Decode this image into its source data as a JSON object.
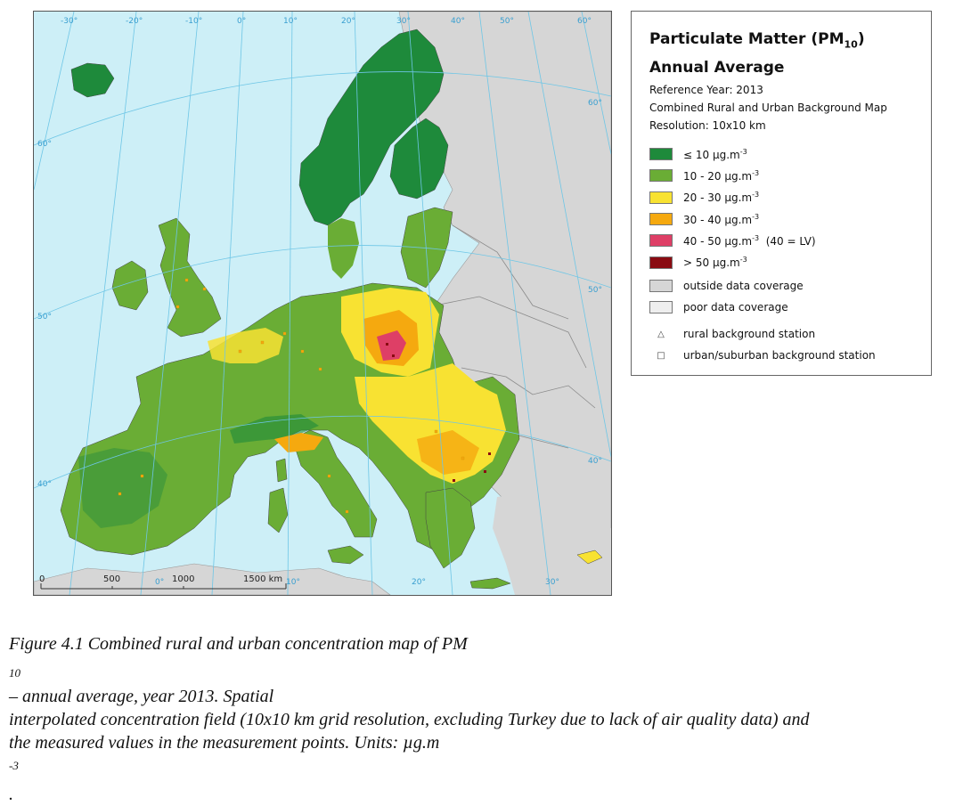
{
  "legend": {
    "title_line1": "Particulate Matter (PM",
    "title_sub": "10",
    "title_end": ")",
    "title_line2": "Annual Average",
    "reference_year": "Reference Year: 2013",
    "map_type": "Combined Rural and Urban Background Map",
    "resolution": "Resolution: 10x10 km",
    "classes": [
      {
        "label": "≤ 10 μg.m",
        "sup": "-3",
        "suffix": "",
        "color": "#1e8a3b"
      },
      {
        "label": "10 - 20 μg.m",
        "sup": "-3",
        "suffix": "",
        "color": "#6aad35"
      },
      {
        "label": "20 - 30 μg.m",
        "sup": "-3",
        "suffix": "",
        "color": "#f8e232"
      },
      {
        "label": "30 - 40 μg.m",
        "sup": "-3",
        "suffix": "",
        "color": "#f5a90f"
      },
      {
        "label": "40 - 50 μg.m",
        "sup": "-3",
        "suffix": "  (40 = LV)",
        "color": "#de3f66"
      },
      {
        "label": "> 50 μg.m",
        "sup": "-3",
        "suffix": "",
        "color": "#8a0b12"
      }
    ],
    "outside_coverage": {
      "label": "outside data coverage",
      "color": "#d6d6d6"
    },
    "poor_coverage": {
      "label": "poor data coverage",
      "color": "#eeeeee"
    },
    "rural_station": "rural background station",
    "urban_station": "urban/suburban background station"
  },
  "map": {
    "lon_labels_top": [
      "-30°",
      "-20°",
      "-10°",
      "0°",
      "10°",
      "20°",
      "30°",
      "40°",
      "50°",
      "60°"
    ],
    "lat_labels_left": [
      "60°",
      "50°",
      "40°"
    ],
    "lat_labels_right": [
      "60°",
      "50°",
      "40°"
    ],
    "lon_labels_bottom": [
      "0°",
      "10°",
      "20°",
      "30°"
    ],
    "scale_labels": [
      "0",
      "500",
      "1000",
      "1500 km"
    ],
    "colors": {
      "sea": "#cdeff7",
      "outside": "#d6d6d6",
      "grid": "#6ec6e6",
      "border": "#7a7a7a"
    }
  },
  "caption": {
    "line1_a": "Figure 4.1 Combined rural and urban concentration map of PM",
    "line1_sub": "10",
    "line1_b": " – annual average, year 2013. Spatial",
    "line2": "interpolated concentration field (10x10 km grid resolution, excluding Turkey due to lack of air quality data) and",
    "line3_a": "the measured values in the measurement points. Units: µg.m",
    "line3_sup": "-3",
    "line3_b": "."
  }
}
